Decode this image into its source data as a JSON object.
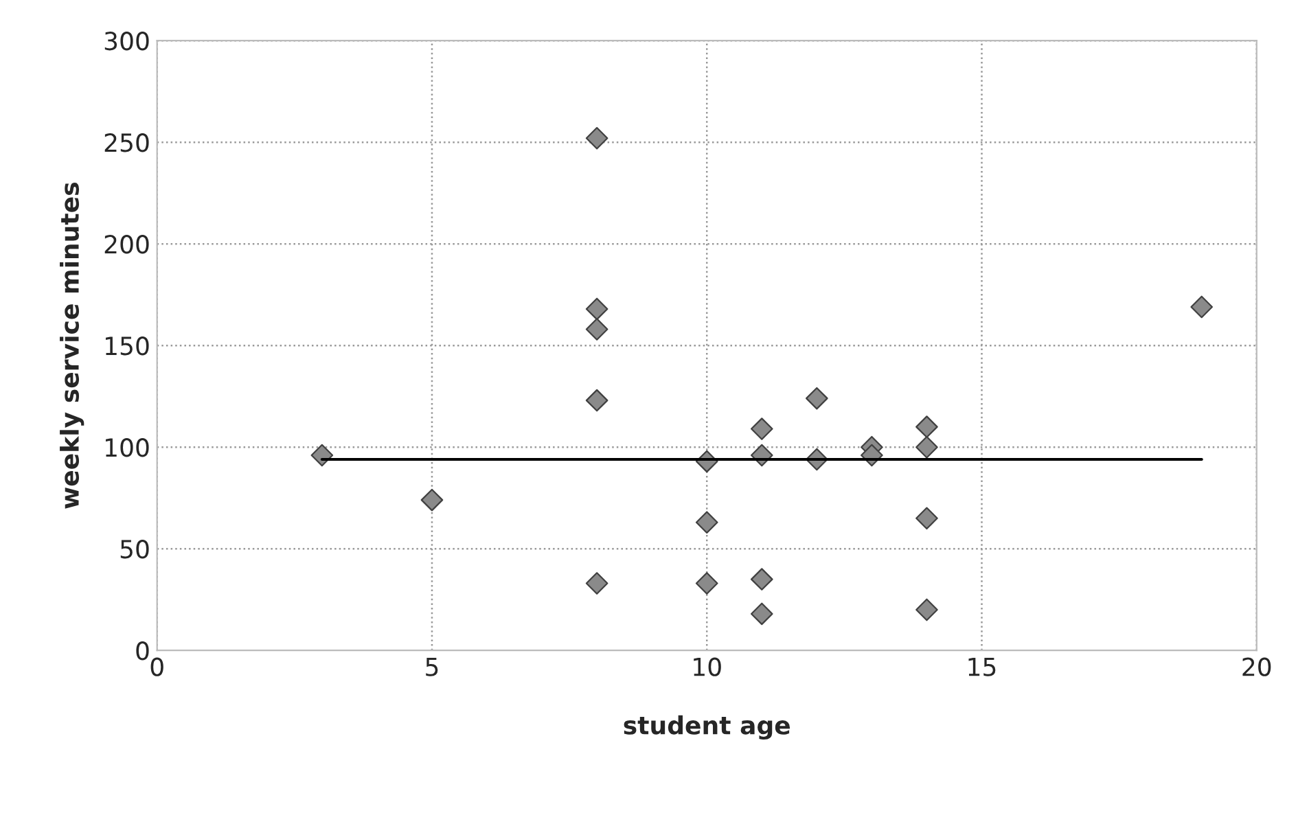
{
  "chart_data": {
    "type": "scatter",
    "xlabel": "student age",
    "ylabel": "weekly service minutes",
    "xlim": [
      0,
      20
    ],
    "xticks": [
      0,
      5,
      10,
      15,
      20
    ],
    "ylim": [
      0,
      300
    ],
    "yticks": [
      0,
      50,
      100,
      150,
      200,
      250,
      300
    ],
    "grid": true,
    "marker": "diamond",
    "series": [
      {
        "color": "#8a8a8a",
        "x": [
          3,
          5,
          8,
          8,
          8,
          8,
          8,
          10,
          10,
          10,
          11,
          11,
          11,
          11,
          12,
          12,
          13,
          13,
          14,
          14,
          14,
          14,
          19
        ],
        "values": [
          96,
          74,
          252,
          168,
          158,
          123,
          33,
          93,
          63,
          33,
          109,
          96,
          35,
          18,
          124,
          94,
          100,
          96,
          110,
          100,
          65,
          20,
          169
        ]
      },
      {
        "type": "line",
        "color": "#000000",
        "marker": "none",
        "x": [
          3,
          19
        ],
        "values": [
          94,
          94
        ]
      }
    ]
  }
}
